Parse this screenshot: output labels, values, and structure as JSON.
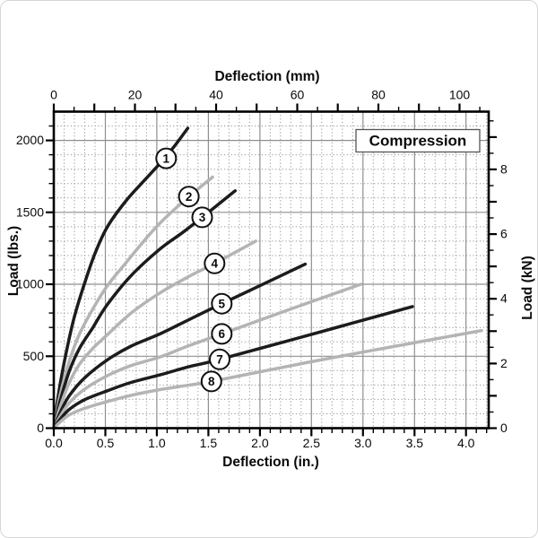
{
  "chart_data": {
    "type": "line",
    "title": "Compression",
    "axes": {
      "top": {
        "label": "Deflection (mm)",
        "tick_labels": [
          "0",
          "20",
          "40",
          "60",
          "80",
          "100"
        ],
        "tick_step": 20,
        "minor_step": 5,
        "max": 105
      },
      "bottom": {
        "label": "Deflection (in.)",
        "tick_labels": [
          "0.0",
          "0.5",
          "1.0",
          "1.5",
          "2.0",
          "2.5",
          "3.0",
          "3.5",
          "4.0"
        ],
        "tick_step": 0.5,
        "minor_step": 0.1,
        "max": 4.22
      },
      "left": {
        "label": "Load (lbs.)",
        "tick_labels": [
          "0",
          "500",
          "1000",
          "1500",
          "2000"
        ],
        "tick_step": 500,
        "minor_step": 100,
        "max": 2200
      },
      "right": {
        "label": "Load (kN)",
        "tick_labels": [
          "0",
          "2",
          "4",
          "6",
          "8"
        ],
        "tick_step": 2,
        "minor_step": 0.5,
        "max": 9.5
      }
    },
    "grid": {
      "major_color": "#8f8f8f",
      "minor_color": "#959595",
      "minor_style": "dotted"
    },
    "units": {
      "x": "inches (top axis in mm, 25.4 mm/in)",
      "y": "lbs (right axis in kN, 224.81 lbs/kN)"
    },
    "series": [
      {
        "number": "1",
        "color": "#1c1c1c",
        "marker_at": [
          1.09,
          1875
        ],
        "points": [
          [
            0,
            0
          ],
          [
            0.05,
            255
          ],
          [
            0.12,
            525
          ],
          [
            0.2,
            775
          ],
          [
            0.3,
            1010
          ],
          [
            0.4,
            1215
          ],
          [
            0.52,
            1400
          ],
          [
            0.7,
            1580
          ],
          [
            0.85,
            1700
          ],
          [
            1.03,
            1840
          ],
          [
            1.16,
            1950
          ],
          [
            1.3,
            2085
          ]
        ]
      },
      {
        "number": "2",
        "color": "#b4b4b4",
        "marker_at": [
          1.31,
          1610
        ],
        "points": [
          [
            0,
            0
          ],
          [
            0.06,
            225
          ],
          [
            0.15,
            465
          ],
          [
            0.25,
            655
          ],
          [
            0.38,
            830
          ],
          [
            0.52,
            990
          ],
          [
            0.7,
            1150
          ],
          [
            0.85,
            1280
          ],
          [
            1.03,
            1425
          ],
          [
            1.28,
            1590
          ],
          [
            1.54,
            1745
          ]
        ]
      },
      {
        "number": "3",
        "color": "#1c1c1c",
        "marker_at": [
          1.44,
          1465
        ],
        "points": [
          [
            0,
            0
          ],
          [
            0.06,
            185
          ],
          [
            0.15,
            395
          ],
          [
            0.25,
            555
          ],
          [
            0.38,
            700
          ],
          [
            0.52,
            860
          ],
          [
            0.75,
            1060
          ],
          [
            1.03,
            1245
          ],
          [
            1.25,
            1360
          ],
          [
            1.44,
            1465
          ],
          [
            1.76,
            1650
          ]
        ]
      },
      {
        "number": "4",
        "color": "#b4b4b4",
        "marker_at": [
          1.56,
          1145
        ],
        "points": [
          [
            0,
            0
          ],
          [
            0.06,
            145
          ],
          [
            0.15,
            315
          ],
          [
            0.25,
            445
          ],
          [
            0.38,
            555
          ],
          [
            0.52,
            650
          ],
          [
            0.75,
            800
          ],
          [
            1.03,
            940
          ],
          [
            1.3,
            1050
          ],
          [
            1.56,
            1145
          ],
          [
            1.96,
            1300
          ]
        ]
      },
      {
        "number": "5",
        "color": "#1c1c1c",
        "marker_at": [
          1.63,
          865
        ],
        "points": [
          [
            0,
            0
          ],
          [
            0.06,
            105
          ],
          [
            0.15,
            225
          ],
          [
            0.3,
            350
          ],
          [
            0.52,
            475
          ],
          [
            0.75,
            570
          ],
          [
            1.03,
            655
          ],
          [
            1.3,
            750
          ],
          [
            1.63,
            865
          ],
          [
            2.0,
            990
          ],
          [
            2.44,
            1140
          ]
        ]
      },
      {
        "number": "6",
        "color": "#b4b4b4",
        "marker_at": [
          1.63,
          655
        ],
        "points": [
          [
            0,
            0
          ],
          [
            0.06,
            80
          ],
          [
            0.15,
            175
          ],
          [
            0.3,
            272
          ],
          [
            0.52,
            365
          ],
          [
            0.75,
            435
          ],
          [
            1.03,
            495
          ],
          [
            1.3,
            570
          ],
          [
            1.63,
            655
          ],
          [
            2.3,
            828
          ],
          [
            2.98,
            1000
          ]
        ]
      },
      {
        "number": "7",
        "color": "#1c1c1c",
        "marker_at": [
          1.61,
          478
        ],
        "points": [
          [
            0,
            0
          ],
          [
            0.06,
            60
          ],
          [
            0.15,
            130
          ],
          [
            0.3,
            198
          ],
          [
            0.52,
            260
          ],
          [
            0.75,
            318
          ],
          [
            1.03,
            370
          ],
          [
            1.3,
            425
          ],
          [
            1.61,
            478
          ],
          [
            2.5,
            652
          ],
          [
            3.48,
            845
          ]
        ]
      },
      {
        "number": "8",
        "color": "#b4b4b4",
        "marker_at": [
          1.53,
          325
        ],
        "points": [
          [
            0,
            0
          ],
          [
            0.06,
            42
          ],
          [
            0.15,
            92
          ],
          [
            0.3,
            138
          ],
          [
            0.52,
            185
          ],
          [
            0.75,
            228
          ],
          [
            1.03,
            268
          ],
          [
            1.3,
            298
          ],
          [
            1.53,
            325
          ],
          [
            2.5,
            462
          ],
          [
            3.3,
            568
          ],
          [
            4.15,
            678
          ]
        ]
      }
    ]
  }
}
